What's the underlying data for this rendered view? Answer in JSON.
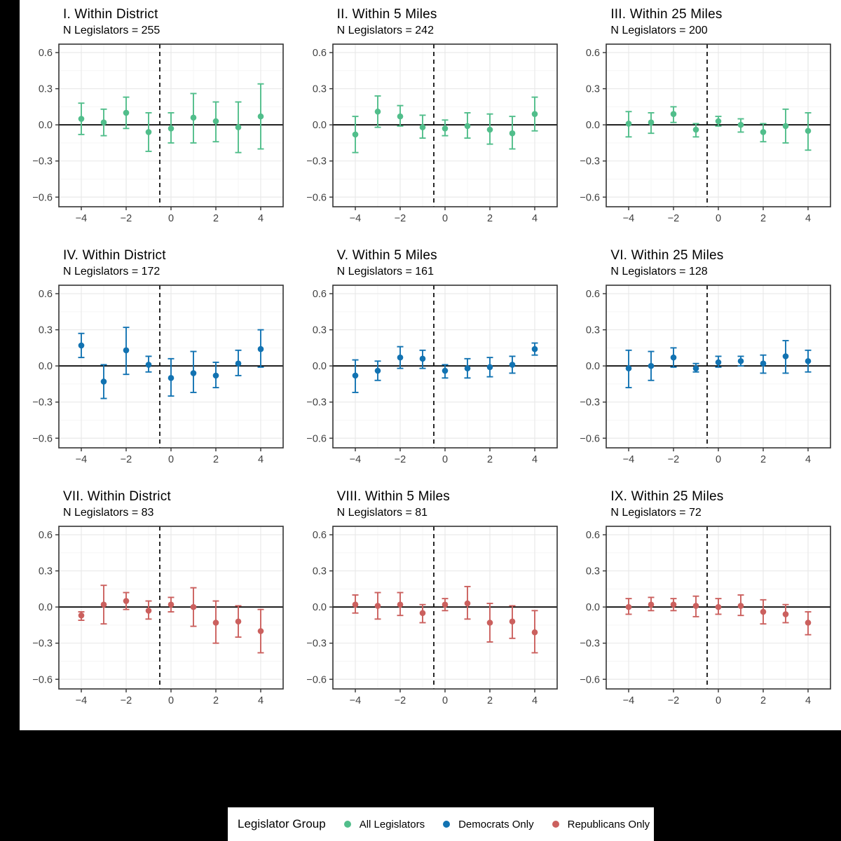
{
  "figure": {
    "background_color": "#000000",
    "plot_background_color": "#ffffff",
    "grid_major_color": "#e9e9e9",
    "grid_minor_color": "#f5f5f5",
    "panel_border_color": "#333333",
    "tick_label_color": "#404040",
    "zero_line_color": "#000000",
    "dashed_line_color": "#111111"
  },
  "legend": {
    "title": "Legislator Group",
    "items": [
      {
        "label": "All Legislators",
        "color": "#51BE8B",
        "icon": "circle-dot"
      },
      {
        "label": "Democrats Only",
        "color": "#1273B2",
        "icon": "circle-dot"
      },
      {
        "label": "Republicans Only",
        "color": "#CB605E",
        "icon": "circle-dot"
      }
    ]
  },
  "chart_data": {
    "type": "scatter",
    "subtype": "point-estimates-with-error-bars",
    "layout": "3x3-small-multiples",
    "x": [
      -4,
      -3,
      -2,
      -1,
      0,
      1,
      2,
      3,
      4
    ],
    "xlim": [
      -5,
      5
    ],
    "ylim": [
      -0.68,
      0.67
    ],
    "x_ticks": [
      -4,
      -2,
      0,
      2,
      4
    ],
    "x_minor": [
      -3,
      -1,
      1,
      3
    ],
    "y_ticks": [
      0.6,
      0.3,
      0.0,
      -0.3,
      -0.6
    ],
    "y_minor": [
      0.45,
      0.15,
      -0.15,
      -0.45
    ],
    "hline": 0,
    "vline": -0.5,
    "grid": true,
    "legend_position": "bottom",
    "panels": [
      {
        "title": "I. Within District",
        "subtitle": "N Legislators = 255",
        "group": "All Legislators",
        "color": "#51BE8B",
        "est": [
          0.05,
          0.02,
          0.1,
          -0.06,
          -0.03,
          0.06,
          0.03,
          -0.02,
          0.07
        ],
        "lo": [
          -0.08,
          -0.09,
          -0.03,
          -0.22,
          -0.15,
          -0.15,
          -0.14,
          -0.23,
          -0.2
        ],
        "hi": [
          0.18,
          0.13,
          0.23,
          0.1,
          0.1,
          0.26,
          0.19,
          0.19,
          0.34
        ]
      },
      {
        "title": "II. Within 5 Miles",
        "subtitle": "N Legislators = 242",
        "group": "All Legislators",
        "color": "#51BE8B",
        "est": [
          -0.08,
          0.11,
          0.07,
          -0.02,
          -0.03,
          -0.01,
          -0.04,
          -0.07,
          0.09
        ],
        "lo": [
          -0.23,
          -0.02,
          -0.01,
          -0.11,
          -0.09,
          -0.11,
          -0.16,
          -0.2,
          -0.05
        ],
        "hi": [
          0.07,
          0.24,
          0.16,
          0.08,
          0.04,
          0.1,
          0.09,
          0.07,
          0.23
        ]
      },
      {
        "title": "III. Within 25 Miles",
        "subtitle": "N Legislators = 200",
        "group": "All Legislators",
        "color": "#51BE8B",
        "est": [
          0.01,
          0.02,
          0.09,
          -0.04,
          0.03,
          0.0,
          -0.06,
          -0.01,
          -0.05
        ],
        "lo": [
          -0.1,
          -0.07,
          0.02,
          -0.1,
          -0.01,
          -0.06,
          -0.14,
          -0.15,
          -0.21
        ],
        "hi": [
          0.11,
          0.1,
          0.15,
          0.01,
          0.07,
          0.05,
          0.01,
          0.13,
          0.1
        ]
      },
      {
        "title": "IV. Within District",
        "subtitle": "N Legislators = 172",
        "group": "Democrats Only",
        "color": "#1273B2",
        "est": [
          0.17,
          -0.13,
          0.13,
          0.01,
          -0.1,
          -0.06,
          -0.08,
          0.02,
          0.14
        ],
        "lo": [
          0.07,
          -0.27,
          -0.07,
          -0.05,
          -0.25,
          -0.22,
          -0.18,
          -0.08,
          -0.01
        ],
        "hi": [
          0.27,
          0.01,
          0.32,
          0.08,
          0.06,
          0.12,
          0.03,
          0.13,
          0.3
        ]
      },
      {
        "title": "V. Within 5 Miles",
        "subtitle": "N Legislators = 161",
        "group": "Democrats Only",
        "color": "#1273B2",
        "est": [
          -0.08,
          -0.04,
          0.07,
          0.06,
          -0.04,
          -0.02,
          -0.01,
          0.01,
          0.14
        ],
        "lo": [
          -0.22,
          -0.12,
          -0.02,
          -0.02,
          -0.1,
          -0.1,
          -0.09,
          -0.06,
          0.09
        ],
        "hi": [
          0.05,
          0.04,
          0.16,
          0.13,
          0.01,
          0.06,
          0.07,
          0.08,
          0.19
        ]
      },
      {
        "title": "VI. Within 25 Miles",
        "subtitle": "N Legislators = 128",
        "group": "Democrats Only",
        "color": "#1273B2",
        "est": [
          -0.02,
          0.0,
          0.07,
          -0.02,
          0.03,
          0.04,
          0.02,
          0.08,
          0.04
        ],
        "lo": [
          -0.18,
          -0.12,
          -0.01,
          -0.05,
          -0.01,
          0.0,
          -0.06,
          -0.06,
          -0.05
        ],
        "hi": [
          0.13,
          0.12,
          0.15,
          0.02,
          0.08,
          0.08,
          0.09,
          0.21,
          0.13
        ]
      },
      {
        "title": "VII. Within District",
        "subtitle": "N Legislators = 83",
        "group": "Republicans Only",
        "color": "#CB605E",
        "est": [
          -0.07,
          0.02,
          0.05,
          -0.03,
          0.02,
          0.0,
          -0.13,
          -0.12,
          -0.2
        ],
        "lo": [
          -0.11,
          -0.14,
          -0.02,
          -0.1,
          -0.04,
          -0.16,
          -0.3,
          -0.25,
          -0.38
        ],
        "hi": [
          -0.04,
          0.18,
          0.12,
          0.05,
          0.08,
          0.16,
          0.05,
          0.01,
          -0.02
        ]
      },
      {
        "title": "VIII. Within 5 Miles",
        "subtitle": "N Legislators = 81",
        "group": "Republicans Only",
        "color": "#CB605E",
        "est": [
          0.02,
          0.01,
          0.02,
          -0.05,
          0.02,
          0.03,
          -0.13,
          -0.12,
          -0.21
        ],
        "lo": [
          -0.05,
          -0.1,
          -0.07,
          -0.13,
          -0.03,
          -0.1,
          -0.29,
          -0.26,
          -0.38
        ],
        "hi": [
          0.1,
          0.12,
          0.12,
          0.02,
          0.07,
          0.17,
          0.03,
          0.01,
          -0.03
        ]
      },
      {
        "title": "IX. Within 25 Miles",
        "subtitle": "N Legislators = 72",
        "group": "Republicans Only",
        "color": "#CB605E",
        "est": [
          0.0,
          0.02,
          0.02,
          0.01,
          0.0,
          0.01,
          -0.04,
          -0.06,
          -0.13
        ],
        "lo": [
          -0.06,
          -0.03,
          -0.03,
          -0.08,
          -0.06,
          -0.07,
          -0.14,
          -0.13,
          -0.23
        ],
        "hi": [
          0.07,
          0.08,
          0.07,
          0.09,
          0.07,
          0.1,
          0.06,
          0.02,
          -0.04
        ]
      }
    ]
  }
}
